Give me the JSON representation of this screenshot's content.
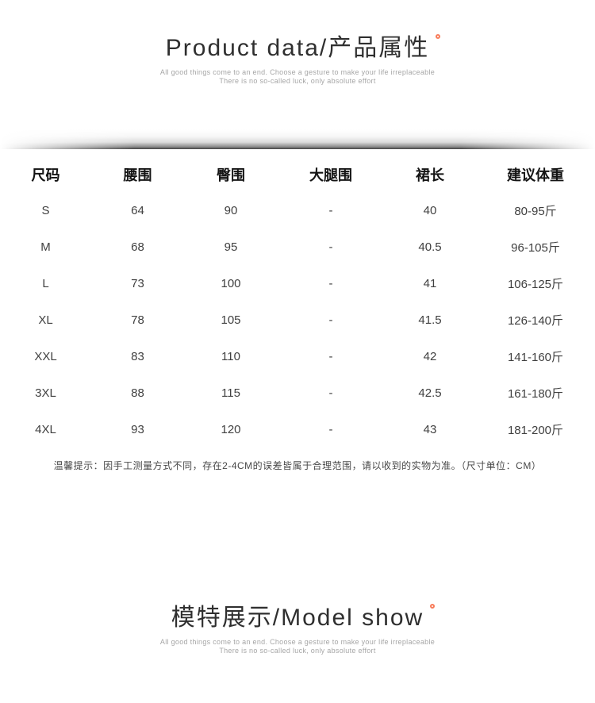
{
  "page": {
    "background_color": "#ffffff",
    "accent_color": "#f87c5a",
    "shadow_color": "#000000"
  },
  "product_section": {
    "title": "Product data/产品属性",
    "subtitle_line1": "All good things come to an end. Choose a gesture to make your life irreplaceable",
    "subtitle_line2": "There is no so-called luck, only absolute effort"
  },
  "size_table": {
    "headers": [
      "尺码",
      "腰围",
      "臀围",
      "大腿围",
      "裙长",
      "建议体重"
    ],
    "rows": [
      [
        "S",
        "64",
        "90",
        "-",
        "40",
        "80-95斤"
      ],
      [
        "M",
        "68",
        "95",
        "-",
        "40.5",
        "96-105斤"
      ],
      [
        "L",
        "73",
        "100",
        "-",
        "41",
        "106-125斤"
      ],
      [
        "XL",
        "78",
        "105",
        "-",
        "41.5",
        "126-140斤"
      ],
      [
        "XXL",
        "83",
        "110",
        "-",
        "42",
        "141-160斤"
      ],
      [
        "3XL",
        "88",
        "115",
        "-",
        "42.5",
        "161-180斤"
      ],
      [
        "4XL",
        "93",
        "120",
        "-",
        "43",
        "181-200斤"
      ]
    ],
    "note": "温馨提示：因手工测量方式不同，存在2-4CM的误差皆属于合理范围，请以收到的实物为准。（尺寸单位：CM）"
  },
  "model_section": {
    "title": "模特展示/Model show",
    "subtitle_line1": "All good things come to an end. Choose a gesture to make your life irreplaceable",
    "subtitle_line2": "There is no so-called luck, only absolute effort"
  }
}
